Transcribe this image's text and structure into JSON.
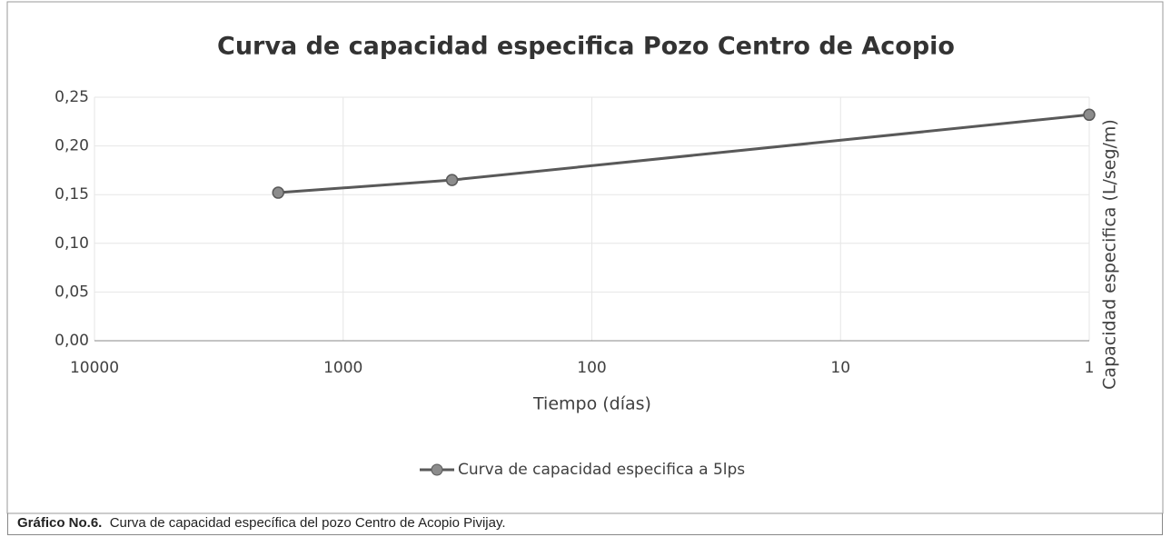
{
  "chart_data": {
    "type": "line",
    "title": "Curva de capacidad especifica Pozo Centro de Acopio",
    "x_label": "Tiempo (días)",
    "y_label": "Capacidad especifica (L/seg/m)",
    "x": [
      1825,
      365,
      1
    ],
    "series": [
      {
        "name": "Curva de capacidad especifica a 5lps",
        "color": "#595959",
        "values": [
          0.152,
          0.165,
          0.232
        ]
      }
    ],
    "xscale": "log",
    "xlim": [
      10000,
      1
    ],
    "xticks": [
      10000,
      1000,
      100,
      10,
      1
    ],
    "ylim": [
      0,
      0.25
    ],
    "yticks": [
      {
        "value": 0,
        "label": "0,00"
      },
      {
        "value": 0.05,
        "label": "0,05"
      },
      {
        "value": 0.1,
        "label": "0,10"
      },
      {
        "value": 0.15,
        "label": "0,15"
      },
      {
        "value": 0.2,
        "label": "0,20"
      },
      {
        "value": 0.25,
        "label": "0,25"
      }
    ],
    "grid": true,
    "legend": "bottom"
  },
  "caption": {
    "label": "Gráfico No.6.",
    "text": "Curva de capacidad específica del pozo Centro de Acopio Pivijay."
  }
}
